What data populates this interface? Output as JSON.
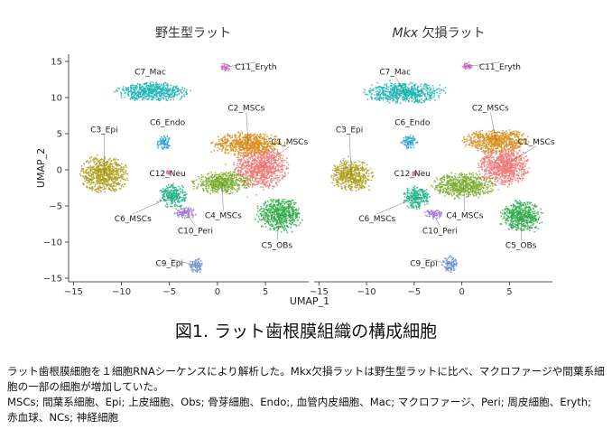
{
  "figure_title": "図1. ラット歯根膜組織の構成細胞",
  "caption": {
    "line1": "ラット歯根膜細胞を１細胞RNAシーケンスにより解析した。Mkx欠損ラットは野生型ラットに比べ、マクロファージや間葉系細胞の一部の細胞が増加していた。",
    "line2": "MSCs; 間葉系細胞、Epi; 上皮細胞、Obs; 骨芽細胞、Endo;, 血管内皮細胞、Mac; マクロファージ、Peri; 周皮細胞、Eryth; 赤血球、NCs; 神経細胞"
  },
  "chart_data": [
    {
      "type": "scatter",
      "title": "野生型ラット",
      "xlabel": "UMAP_1",
      "ylabel": "UMAP_2",
      "xlim": [
        -15.5,
        9.5
      ],
      "ylim": [
        -15.5,
        16
      ],
      "xticks": [
        -15,
        -10,
        -5,
        0,
        5
      ],
      "yticks": [
        -15,
        -10,
        -5,
        0,
        5,
        10,
        15
      ],
      "grid": false,
      "clusters": [
        {
          "name": "C1_MSCs",
          "color": "#f07a78",
          "center": [
            4.5,
            0.3
          ],
          "spread": [
            2.6,
            2.8
          ],
          "label_at": [
            7.5,
            3.5
          ]
        },
        {
          "name": "C2_MSCs",
          "color": "#d9901f",
          "center": [
            3.2,
            3.6
          ],
          "spread": [
            3.4,
            1.5
          ],
          "label_at": [
            3.0,
            8.2
          ]
        },
        {
          "name": "C3_Epi",
          "color": "#b1a020",
          "center": [
            -11.8,
            -0.6
          ],
          "spread": [
            2.3,
            2.4
          ],
          "label_at": [
            -11.8,
            5.2
          ]
        },
        {
          "name": "C4_MSCs",
          "color": "#7aad2e",
          "center": [
            0.5,
            -1.8
          ],
          "spread": [
            2.8,
            1.4
          ],
          "label_at": [
            0.6,
            -6.7
          ]
        },
        {
          "name": "C5_OBs",
          "color": "#2fae48",
          "center": [
            6.5,
            -6.2
          ],
          "spread": [
            2.2,
            2.0
          ],
          "label_at": [
            6.2,
            -10.8
          ]
        },
        {
          "name": "C6_Endo",
          "color": "#2aa6d6",
          "center": [
            -5.6,
            3.8
          ],
          "spread": [
            0.7,
            0.9
          ],
          "label_at": [
            -5.2,
            6.2
          ]
        },
        {
          "name": "C6_MSCs",
          "color": "#26b48b",
          "center": [
            -4.6,
            -3.6
          ],
          "spread": [
            1.3,
            1.6
          ],
          "label_at": [
            -8.8,
            -7.1
          ]
        },
        {
          "name": "C7_Mac",
          "color": "#1db5b5",
          "center": [
            -6.8,
            10.8
          ],
          "spread": [
            3.5,
            1.2
          ],
          "label_at": [
            -7.0,
            13.2
          ]
        },
        {
          "name": "C9_Epi",
          "color": "#6b93d6",
          "center": [
            -2.2,
            -13.2
          ],
          "spread": [
            0.7,
            0.9
          ],
          "label_at": [
            -5.0,
            -13.3
          ]
        },
        {
          "name": "C10_Peri",
          "color": "#a07ad8",
          "center": [
            -3.3,
            -5.9
          ],
          "spread": [
            1.1,
            0.7
          ],
          "label_at": [
            -2.3,
            -8.8
          ]
        },
        {
          "name": "C11_Eryth",
          "color": "#cc66cc",
          "center": [
            0.8,
            14.2
          ],
          "spread": [
            0.5,
            0.5
          ],
          "label_at": [
            4.0,
            13.9
          ]
        },
        {
          "name": "C12_Neu",
          "color": "#e87ab8",
          "center": [
            -5.1,
            -0.4
          ],
          "spread": [
            0.2,
            0.3
          ],
          "label_at": [
            -5.2,
            -0.9
          ]
        }
      ]
    },
    {
      "type": "scatter",
      "title": "Mkx 欠損ラット",
      "title_italic": "Mkx",
      "title_rest": " 欠損ラット",
      "xlabel": "",
      "ylabel": "",
      "xlim": [
        -15.5,
        9.5
      ],
      "ylim": [
        -15.5,
        16
      ],
      "xticks": [
        -15,
        -10,
        -5,
        0,
        5
      ],
      "yticks": [],
      "grid": false,
      "clusters": [
        {
          "name": "C1_MSCs",
          "color": "#f07a78",
          "center": [
            4.4,
            0.6
          ],
          "spread": [
            2.4,
            2.7
          ],
          "label_at": [
            7.8,
            3.5
          ]
        },
        {
          "name": "C2_MSCs",
          "color": "#d9901f",
          "center": [
            3.6,
            4.0
          ],
          "spread": [
            3.2,
            1.5
          ],
          "label_at": [
            3.0,
            8.2
          ]
        },
        {
          "name": "C3_Epi",
          "color": "#b1a020",
          "center": [
            -11.6,
            -0.8
          ],
          "spread": [
            2.0,
            2.0
          ],
          "label_at": [
            -11.8,
            5.2
          ]
        },
        {
          "name": "C4_MSCs",
          "color": "#7aad2e",
          "center": [
            0.2,
            -2.2
          ],
          "spread": [
            3.0,
            1.6
          ],
          "label_at": [
            0.3,
            -6.7
          ]
        },
        {
          "name": "C5_OBs",
          "color": "#2fae48",
          "center": [
            6.3,
            -6.4
          ],
          "spread": [
            2.0,
            2.0
          ],
          "label_at": [
            6.2,
            -10.8
          ]
        },
        {
          "name": "C6_Endo",
          "color": "#2aa6d6",
          "center": [
            -5.5,
            3.8
          ],
          "spread": [
            0.8,
            0.9
          ],
          "label_at": [
            -5.2,
            6.2
          ]
        },
        {
          "name": "C6_MSCs",
          "color": "#26b48b",
          "center": [
            -4.8,
            -3.8
          ],
          "spread": [
            1.3,
            1.5
          ],
          "label_at": [
            -8.9,
            -7.1
          ]
        },
        {
          "name": "C7_Mac",
          "color": "#1db5b5",
          "center": [
            -6.0,
            10.6
          ],
          "spread": [
            3.8,
            1.3
          ],
          "label_at": [
            -7.0,
            13.2
          ]
        },
        {
          "name": "C9_Epi",
          "color": "#6b93d6",
          "center": [
            -1.2,
            -13.0
          ],
          "spread": [
            0.8,
            1.0
          ],
          "label_at": [
            -4.0,
            -13.3
          ]
        },
        {
          "name": "C10_Peri",
          "color": "#a07ad8",
          "center": [
            -3.0,
            -6.1
          ],
          "spread": [
            0.9,
            0.6
          ],
          "label_at": [
            -2.3,
            -8.8
          ]
        },
        {
          "name": "C11_Eryth",
          "color": "#cc66cc",
          "center": [
            0.6,
            14.3
          ],
          "spread": [
            0.5,
            0.5
          ],
          "label_at": [
            4.0,
            13.9
          ]
        },
        {
          "name": "C12_Neu",
          "color": "#e87ab8",
          "center": [
            -5.0,
            -0.5
          ],
          "spread": [
            0.2,
            0.3
          ],
          "label_at": [
            -5.2,
            -0.9
          ]
        }
      ]
    }
  ]
}
